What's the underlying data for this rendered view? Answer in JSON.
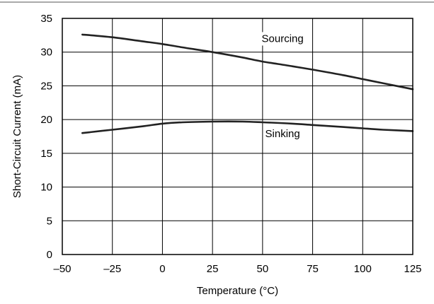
{
  "chart_data": {
    "type": "line",
    "title": "",
    "xlabel": "Temperature (°C)",
    "ylabel": "Short-Circuit Current (mA)",
    "xlim": [
      -50,
      125
    ],
    "ylim": [
      0,
      35
    ],
    "xticks": [
      -50,
      -25,
      0,
      25,
      50,
      75,
      100,
      125
    ],
    "yticks": [
      0,
      5,
      10,
      15,
      20,
      25,
      30,
      35
    ],
    "xtick_labels": [
      "–50",
      "–25",
      "0",
      "25",
      "50",
      "75",
      "100",
      "125"
    ],
    "ytick_labels": [
      "0",
      "5",
      "10",
      "15",
      "20",
      "25",
      "30",
      "35"
    ],
    "grid": true,
    "legend": "none",
    "series": [
      {
        "name": "Sourcing",
        "color": "#222222",
        "x": [
          -40,
          -25,
          -10,
          0,
          10,
          25,
          40,
          50,
          65,
          75,
          90,
          100,
          110,
          125
        ],
        "y": [
          32.6,
          32.2,
          31.6,
          31.2,
          30.7,
          30.0,
          29.2,
          28.6,
          27.9,
          27.4,
          26.6,
          26.0,
          25.4,
          24.5
        ]
      },
      {
        "name": "Sinking",
        "color": "#222222",
        "x": [
          -40,
          -25,
          -10,
          0,
          10,
          25,
          40,
          50,
          65,
          75,
          90,
          100,
          110,
          125
        ],
        "y": [
          18.0,
          18.5,
          19.0,
          19.4,
          19.6,
          19.7,
          19.7,
          19.6,
          19.4,
          19.2,
          18.9,
          18.7,
          18.5,
          18.3
        ]
      }
    ],
    "annotations": [
      {
        "text": "Sourcing",
        "x": 60,
        "y": 31.5
      },
      {
        "text": "Sinking",
        "x": 60,
        "y": 17.4
      }
    ]
  }
}
